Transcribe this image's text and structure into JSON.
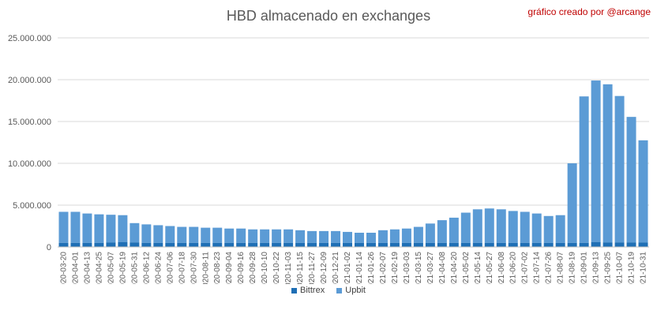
{
  "chart_data": {
    "type": "bar",
    "stacked": true,
    "title": "HBD almacenado en exchanges",
    "credit": "gráfico creado por @arcange",
    "ylim": [
      0,
      25000000
    ],
    "yticks": [
      "0",
      "5.000.000",
      "10.000.000",
      "15.000.000",
      "20.000.000",
      "25.000.000"
    ],
    "ytick_values": [
      0,
      5000000,
      10000000,
      15000000,
      20000000,
      25000000
    ],
    "grid": true,
    "legend_position": "bottom",
    "colors": {
      "Bittrex": "#1f6fb5",
      "Upbit": "#5b9bd5"
    },
    "x_labels": [
      "2020-03-20",
      "2020-04-01",
      "2020-04-13",
      "2020-04-25",
      "2020-05-07",
      "2020-05-19",
      "2020-05-31",
      "2020-06-12",
      "2020-06-24",
      "2020-07-06",
      "2020-07-18",
      "2020-07-30",
      "2020-08-11",
      "2020-08-23",
      "2020-09-04",
      "2020-09-16",
      "2020-09-28",
      "2020-10-10",
      "2020-10-22",
      "2020-11-03",
      "2020-11-15",
      "2020-11-27",
      "2020-12-09",
      "2020-12-21",
      "2021-01-02",
      "2021-01-14",
      "2021-01-26",
      "2021-02-07",
      "2021-02-19",
      "2021-03-03",
      "2021-03-15",
      "2021-03-27",
      "2021-04-08",
      "2021-04-20",
      "2021-05-02",
      "2021-05-14",
      "2021-05-27",
      "2021-06-08",
      "2021-06-20",
      "2021-07-02",
      "2021-07-14",
      "2021-07-26",
      "2021-08-07",
      "2021-08-19",
      "2021-09-01",
      "2021-09-13",
      "2021-09-25",
      "2021-10-07",
      "2021-10-19",
      "2021-10-31"
    ],
    "series": [
      {
        "name": "Bittrex",
        "values": [
          500000,
          500000,
          500000,
          500000,
          550000,
          600000,
          550000,
          500000,
          500000,
          500000,
          500000,
          500000,
          500000,
          500000,
          500000,
          500000,
          500000,
          500000,
          500000,
          500000,
          500000,
          500000,
          500000,
          500000,
          500000,
          500000,
          500000,
          500000,
          500000,
          500000,
          500000,
          500000,
          500000,
          500000,
          500000,
          500000,
          500000,
          500000,
          500000,
          500000,
          500000,
          500000,
          500000,
          500000,
          500000,
          600000,
          550000,
          550000,
          550000,
          550000
        ]
      },
      {
        "name": "Upbit",
        "values": [
          3700000,
          3700000,
          3500000,
          3400000,
          3300000,
          3200000,
          2300000,
          2200000,
          2100000,
          2000000,
          1900000,
          1900000,
          1800000,
          1800000,
          1700000,
          1700000,
          1600000,
          1600000,
          1600000,
          1600000,
          1500000,
          1400000,
          1400000,
          1400000,
          1300000,
          1200000,
          1200000,
          1500000,
          1600000,
          1700000,
          1900000,
          2300000,
          2700000,
          3000000,
          3600000,
          4000000,
          4100000,
          4000000,
          3800000,
          3700000,
          3500000,
          3200000,
          3300000,
          9500000,
          17500000,
          19300000,
          18900000,
          17500000,
          15000000,
          12200000
        ]
      }
    ]
  }
}
